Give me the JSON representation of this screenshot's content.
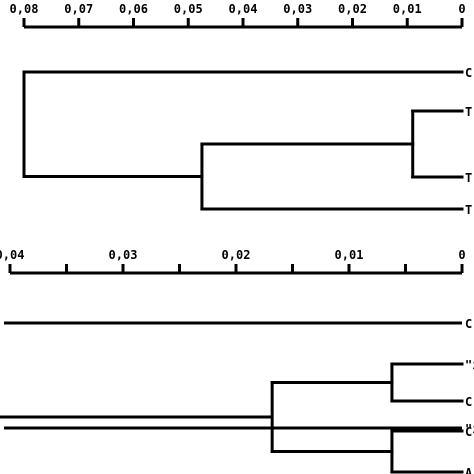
{
  "panels": [
    {
      "id": "top",
      "scale": {
        "tick_values": [
          0.08,
          0.07,
          0.06,
          0.05,
          0.04,
          0.03,
          0.02,
          0.01,
          0
        ],
        "tick_labels": [
          "0,08",
          "0,07",
          "0,06",
          "0,05",
          "0,04",
          "0,03",
          "0,02",
          "0,01",
          "0"
        ],
        "range": [
          0.08,
          0
        ]
      },
      "leaves": [
        {
          "id": "a",
          "label": "C"
        },
        {
          "id": "b",
          "label": "T"
        },
        {
          "id": "c",
          "label": "T"
        },
        {
          "id": "d",
          "label": "T"
        }
      ],
      "nodes": [
        {
          "id": "n1",
          "height": 0.009,
          "children": [
            "b",
            "c"
          ]
        },
        {
          "id": "n2",
          "height": 0.0475,
          "children": [
            "n1",
            "d"
          ]
        },
        {
          "id": "root",
          "height": 0.08,
          "children": [
            "a",
            "n2"
          ]
        }
      ]
    },
    {
      "id": "bottom",
      "scale": {
        "tick_values": [
          0.04,
          0.035,
          0.03,
          0.025,
          0.02,
          0.015,
          0.01,
          0.005,
          0
        ],
        "tick_labels": [
          "0,04",
          "",
          "0,03",
          "",
          "0,02",
          "",
          "0,01",
          "",
          "0"
        ],
        "range": [
          0.04,
          0
        ]
      },
      "leaves": [
        {
          "id": "p",
          "label": "C"
        },
        {
          "id": "q",
          "label": "\"i"
        },
        {
          "id": "r",
          "label": "C"
        },
        {
          "id": "s",
          "label": "\"i"
        },
        {
          "id": "t",
          "label": "C"
        },
        {
          "id": "u",
          "label": "A"
        }
      ],
      "nodes": [
        {
          "id": "m1",
          "height": 0.0062,
          "children": [
            "q",
            "r"
          ]
        },
        {
          "id": "m2",
          "height": 0.0062,
          "children": [
            "t",
            "u"
          ]
        },
        {
          "id": "m3",
          "height": 0.0168,
          "children": [
            "m1",
            "m2"
          ]
        }
      ]
    }
  ]
}
